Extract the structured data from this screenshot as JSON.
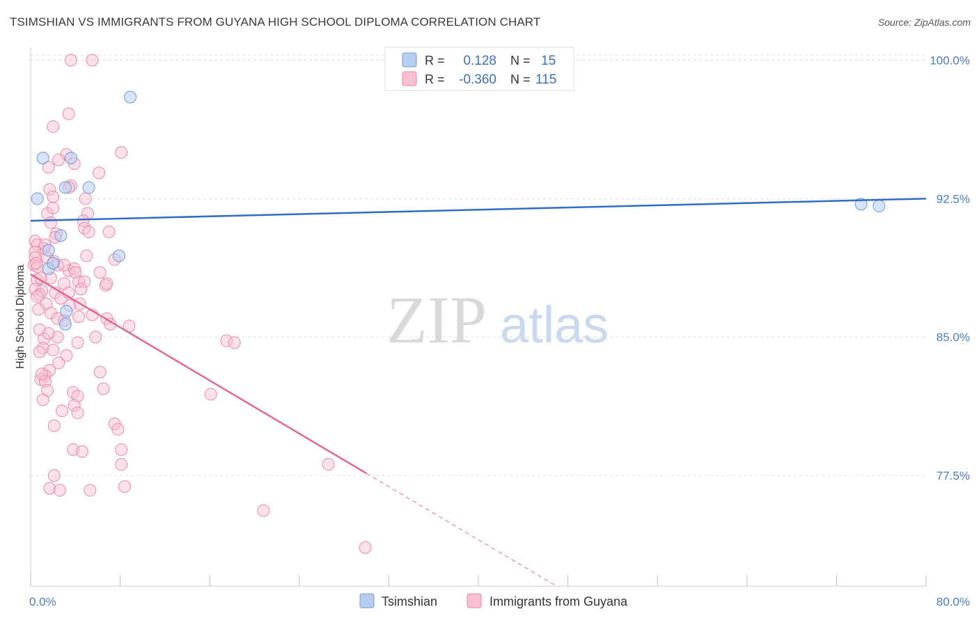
{
  "header": {
    "title": "TSIMSHIAN VS IMMIGRANTS FROM GUYANA HIGH SCHOOL DIPLOMA CORRELATION CHART",
    "source": "Source: ZipAtlas.com"
  },
  "watermark": {
    "zip": "ZIP",
    "atlas": "atlas"
  },
  "colors": {
    "tsimshian_fill": "#b7cef0",
    "tsimshian_stroke": "#6f98d8",
    "tsimshian_line": "#2f6cc8",
    "guyana_fill": "#f7bfd0",
    "guyana_stroke": "#ea8aa8",
    "guyana_line": "#e06790",
    "grid": "#dcdcdc",
    "tick_label": "#4a7cc0"
  },
  "legend": {
    "rows": [
      {
        "r_label": "R =",
        "r_value": "0.128",
        "n_label": "N =",
        "n_value": "15"
      },
      {
        "r_label": "R =",
        "r_value": "-0.360",
        "n_label": "N =",
        "n_value": "115"
      }
    ]
  },
  "chart_data": {
    "type": "scatter",
    "title": "TSIMSHIAN VS IMMIGRANTS FROM GUYANA HIGH SCHOOL DIPLOMA CORRELATION CHART",
    "xlabel": "",
    "ylabel": "High School Diploma",
    "xlim": [
      0,
      80
    ],
    "ylim": [
      71.5,
      101.0
    ],
    "x_tick_labels": [
      "0.0%",
      "80.0%"
    ],
    "y_ticks": [
      {
        "value": 100.0,
        "label": "100.0%"
      },
      {
        "value": 92.5,
        "label": "92.5%"
      },
      {
        "value": 85.0,
        "label": "85.0%"
      },
      {
        "value": 77.5,
        "label": "77.5%"
      }
    ],
    "series": [
      {
        "name": "Tsimshian",
        "r": 0.128,
        "n": 15,
        "trend": {
          "x0": 0,
          "y0": 91.3,
          "x1": 80,
          "y1": 92.5,
          "solid_until": 80
        },
        "points": [
          [
            0.6,
            92.5
          ],
          [
            1.1,
            94.7
          ],
          [
            3.6,
            94.7
          ],
          [
            2.7,
            90.5
          ],
          [
            1.6,
            89.7
          ],
          [
            1.6,
            88.7
          ],
          [
            3.1,
            93.1
          ],
          [
            5.2,
            93.1
          ],
          [
            7.9,
            89.4
          ],
          [
            8.9,
            98.0
          ],
          [
            3.2,
            86.4
          ],
          [
            3.1,
            85.7
          ],
          [
            74.2,
            92.2
          ],
          [
            75.8,
            92.1
          ],
          [
            2.0,
            89.0
          ]
        ]
      },
      {
        "name": "Immigrants from Guyana",
        "r": -0.36,
        "n": 115,
        "trend": {
          "x0": 0,
          "y0": 88.4,
          "x1": 47,
          "y1": 71.5,
          "solid_until": 30
        },
        "points": [
          [
            3.6,
            100.0
          ],
          [
            5.5,
            100.0
          ],
          [
            3.4,
            97.1
          ],
          [
            2.0,
            96.4
          ],
          [
            8.1,
            95.0
          ],
          [
            3.2,
            94.9
          ],
          [
            3.9,
            94.4
          ],
          [
            2.5,
            94.6
          ],
          [
            6.1,
            93.9
          ],
          [
            1.6,
            94.2
          ],
          [
            3.6,
            93.2
          ],
          [
            3.4,
            93.1
          ],
          [
            1.7,
            93.0
          ],
          [
            4.9,
            92.5
          ],
          [
            2.0,
            92.6
          ],
          [
            5.1,
            91.7
          ],
          [
            1.5,
            91.7
          ],
          [
            2.0,
            92.0
          ],
          [
            4.7,
            91.3
          ],
          [
            1.8,
            91.2
          ],
          [
            2.3,
            90.6
          ],
          [
            2.2,
            90.4
          ],
          [
            4.8,
            90.9
          ],
          [
            7.0,
            90.7
          ],
          [
            5.2,
            90.7
          ],
          [
            0.4,
            90.2
          ],
          [
            0.6,
            90.0
          ],
          [
            1.2,
            89.8
          ],
          [
            0.4,
            89.6
          ],
          [
            0.4,
            89.3
          ],
          [
            1.5,
            89.3
          ],
          [
            2.1,
            89.1
          ],
          [
            0.3,
            88.9
          ],
          [
            0.6,
            88.8
          ],
          [
            2.4,
            88.9
          ],
          [
            7.5,
            89.2
          ],
          [
            3.4,
            88.6
          ],
          [
            3.9,
            88.7
          ],
          [
            4.0,
            88.5
          ],
          [
            6.2,
            88.5
          ],
          [
            0.6,
            88.1
          ],
          [
            1.8,
            88.2
          ],
          [
            4.3,
            88.0
          ],
          [
            4.8,
            88.0
          ],
          [
            6.7,
            87.8
          ],
          [
            3.0,
            87.9
          ],
          [
            0.4,
            87.6
          ],
          [
            1.0,
            87.5
          ],
          [
            2.2,
            87.4
          ],
          [
            0.8,
            87.3
          ],
          [
            4.5,
            87.6
          ],
          [
            1.4,
            86.8
          ],
          [
            2.7,
            87.1
          ],
          [
            3.4,
            87.4
          ],
          [
            0.7,
            86.5
          ],
          [
            1.8,
            86.3
          ],
          [
            2.4,
            86.0
          ],
          [
            4.3,
            86.1
          ],
          [
            5.5,
            86.2
          ],
          [
            6.8,
            86.0
          ],
          [
            3.0,
            85.9
          ],
          [
            7.1,
            85.7
          ],
          [
            8.8,
            85.6
          ],
          [
            0.8,
            85.4
          ],
          [
            1.2,
            84.9
          ],
          [
            2.4,
            85.0
          ],
          [
            4.2,
            84.7
          ],
          [
            5.8,
            85.0
          ],
          [
            1.1,
            84.4
          ],
          [
            0.8,
            84.2
          ],
          [
            3.2,
            84.0
          ],
          [
            17.5,
            84.8
          ],
          [
            18.2,
            84.7
          ],
          [
            1.7,
            83.2
          ],
          [
            1.3,
            82.9
          ],
          [
            0.9,
            82.7
          ],
          [
            1.3,
            82.6
          ],
          [
            6.2,
            83.1
          ],
          [
            1.5,
            82.1
          ],
          [
            3.8,
            82.0
          ],
          [
            6.5,
            82.2
          ],
          [
            4.2,
            81.8
          ],
          [
            1.1,
            81.6
          ],
          [
            3.9,
            81.3
          ],
          [
            2.8,
            81.0
          ],
          [
            4.2,
            80.9
          ],
          [
            7.5,
            80.3
          ],
          [
            2.1,
            80.2
          ],
          [
            7.8,
            80.0
          ],
          [
            16.1,
            81.9
          ],
          [
            3.8,
            78.9
          ],
          [
            4.6,
            78.8
          ],
          [
            8.1,
            78.9
          ],
          [
            8.1,
            78.1
          ],
          [
            26.6,
            78.1
          ],
          [
            2.1,
            77.5
          ],
          [
            8.4,
            76.9
          ],
          [
            1.7,
            76.8
          ],
          [
            2.6,
            76.7
          ],
          [
            5.3,
            76.7
          ],
          [
            20.8,
            75.6
          ],
          [
            29.9,
            73.6
          ],
          [
            0.6,
            87.2
          ],
          [
            1.0,
            83.0
          ],
          [
            3.5,
            86.7
          ],
          [
            2.0,
            84.3
          ],
          [
            0.9,
            88.2
          ],
          [
            5.0,
            89.4
          ],
          [
            1.3,
            90.0
          ],
          [
            0.5,
            89.0
          ],
          [
            3.0,
            88.9
          ],
          [
            4.4,
            86.8
          ],
          [
            2.5,
            83.6
          ],
          [
            1.6,
            85.2
          ],
          [
            6.8,
            87.9
          ]
        ]
      }
    ]
  },
  "bottom_legend": [
    {
      "label": "Tsimshian"
    },
    {
      "label": "Immigrants from Guyana"
    }
  ]
}
